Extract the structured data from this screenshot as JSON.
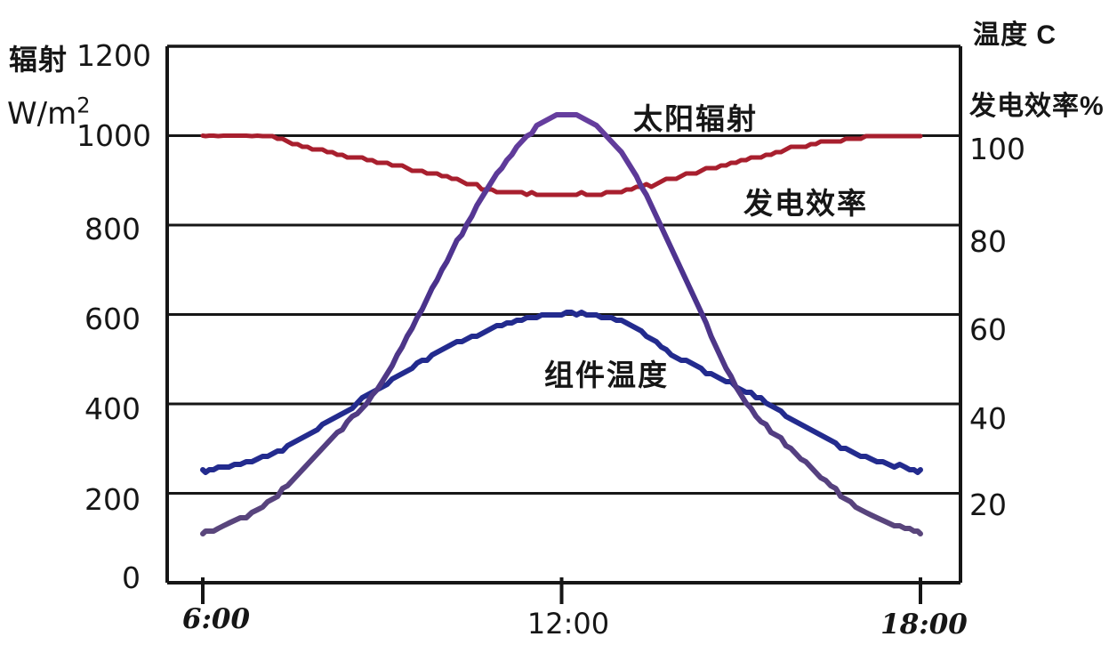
{
  "chart_data": {
    "type": "line",
    "grid": true,
    "legend_position": "inline-annotations",
    "x_hours": [
      6,
      7,
      8,
      9,
      10,
      11,
      12,
      13,
      14,
      15,
      16,
      17,
      18
    ],
    "x_tick_hours": [
      6,
      12,
      18
    ],
    "x_tick_labels": [
      "6:00",
      "12:00",
      "18:00"
    ],
    "left_axis": {
      "title1": "辐射",
      "unit": "W/m",
      "unit_sup": "2",
      "ticks": [
        "1200",
        "1000",
        "800",
        "600",
        "400",
        "200",
        "0"
      ],
      "values": [
        1200,
        1000,
        800,
        600,
        400,
        200,
        0
      ],
      "range": [
        0,
        1200
      ]
    },
    "right_axis": {
      "title1": "温度 C",
      "title2": "发电效率%",
      "ticks": [
        "100",
        "80",
        "60",
        "40",
        "20"
      ],
      "values": [
        100,
        80,
        60,
        40,
        20
      ],
      "range": [
        0,
        120
      ]
    },
    "series": [
      {
        "name": "太阳辐射",
        "axis": "left",
        "unit": "W/m2",
        "color_top": "#7243a6",
        "color_mid": "#49318c",
        "color_bottom": "#5d4a78",
        "stroke_width": 6,
        "values": [
          110,
          170,
          300,
          450,
          700,
          930,
          1050,
          960,
          700,
          420,
          280,
          165,
          110
        ]
      },
      {
        "name": "发电效率",
        "axis": "right",
        "unit": "%",
        "color": "#a81f2e",
        "stroke_width": 5,
        "clamp_max": 100,
        "values": [
          100,
          100,
          96.5,
          94,
          91,
          87.5,
          87,
          87.5,
          91,
          94.5,
          97.5,
          99.5,
          100
        ]
      },
      {
        "name": "组件温度",
        "axis": "right",
        "unit": "C",
        "color": "#232b8e",
        "stroke_width": 6,
        "values": [
          25,
          28,
          35,
          44,
          52,
          57.5,
          60,
          58.5,
          50,
          43.5,
          35.5,
          28.5,
          25
        ]
      }
    ],
    "colors": {
      "axis": "#161616",
      "background": "#ffffff"
    }
  }
}
